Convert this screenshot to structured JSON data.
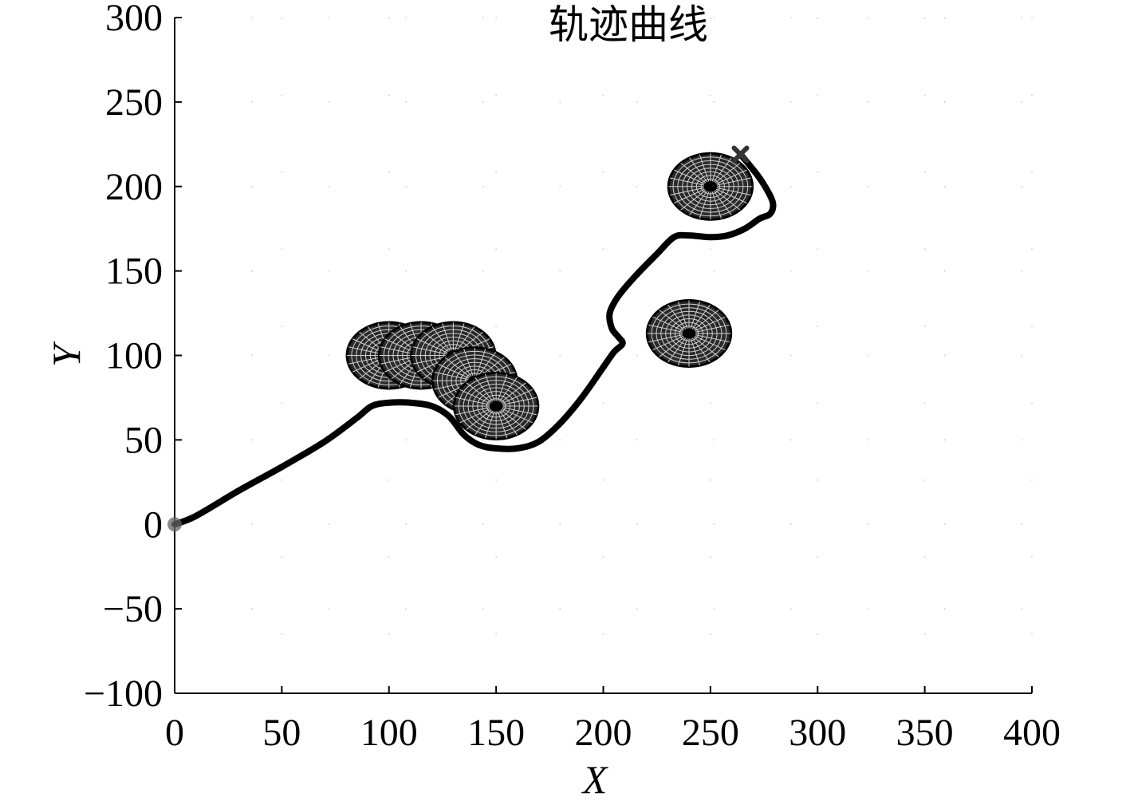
{
  "chart_data": {
    "type": "line",
    "title": "轨迹曲线",
    "xlabel": "X",
    "ylabel": "Y",
    "xlim": [
      0,
      400
    ],
    "ylim": [
      -100,
      300
    ],
    "xticks": [
      0,
      50,
      100,
      150,
      200,
      250,
      300,
      350,
      400
    ],
    "yticks": [
      -100,
      -50,
      0,
      50,
      100,
      150,
      200,
      250,
      300
    ],
    "xtick_labels": [
      "0",
      "50",
      "100",
      "150",
      "200",
      "250",
      "300",
      "350",
      "400"
    ],
    "ytick_labels": [
      "−100",
      "−50",
      "0",
      "50",
      "100",
      "150",
      "200",
      "250",
      "300"
    ],
    "grid": "dotted",
    "series": [
      {
        "type": "line",
        "color": "#000000",
        "x": [
          0,
          10,
          30,
          50,
          70,
          85,
          92,
          100,
          110,
          120,
          128,
          135,
          142,
          150,
          160,
          170,
          180,
          190,
          200,
          205,
          209,
          207,
          204,
          203,
          207,
          215,
          225,
          233,
          240,
          250,
          258,
          266,
          273,
          278,
          279,
          274,
          268,
          264
        ],
        "y": [
          0,
          5,
          20,
          34,
          49,
          63,
          70,
          72,
          72,
          70,
          64,
          53,
          47,
          45,
          45,
          49,
          60,
          75,
          93,
          102,
          107,
          111,
          116,
          125,
          135,
          147,
          160,
          170,
          171,
          170,
          171,
          175,
          181,
          184,
          191,
          203,
          213,
          219
        ]
      }
    ],
    "obstacles": [
      {
        "x": 100,
        "y": 100,
        "r": 20,
        "color": "#000000"
      },
      {
        "x": 115,
        "y": 100,
        "r": 20,
        "color": "#000000"
      },
      {
        "x": 130,
        "y": 100,
        "r": 20,
        "color": "#000000"
      },
      {
        "x": 140,
        "y": 85,
        "r": 20,
        "color": "#000000"
      },
      {
        "x": 150,
        "y": 70,
        "r": 20,
        "color": "#000000"
      },
      {
        "x": 240,
        "y": 113,
        "r": 20,
        "color": "#000000"
      },
      {
        "x": 250,
        "y": 200,
        "r": 20,
        "color": "#000000"
      }
    ],
    "start_marker": {
      "x": 0,
      "y": 0,
      "shape": "circle",
      "color": "#666666"
    },
    "goal_marker": {
      "x": 264,
      "y": 219,
      "shape": "x",
      "color": "#333333"
    }
  }
}
